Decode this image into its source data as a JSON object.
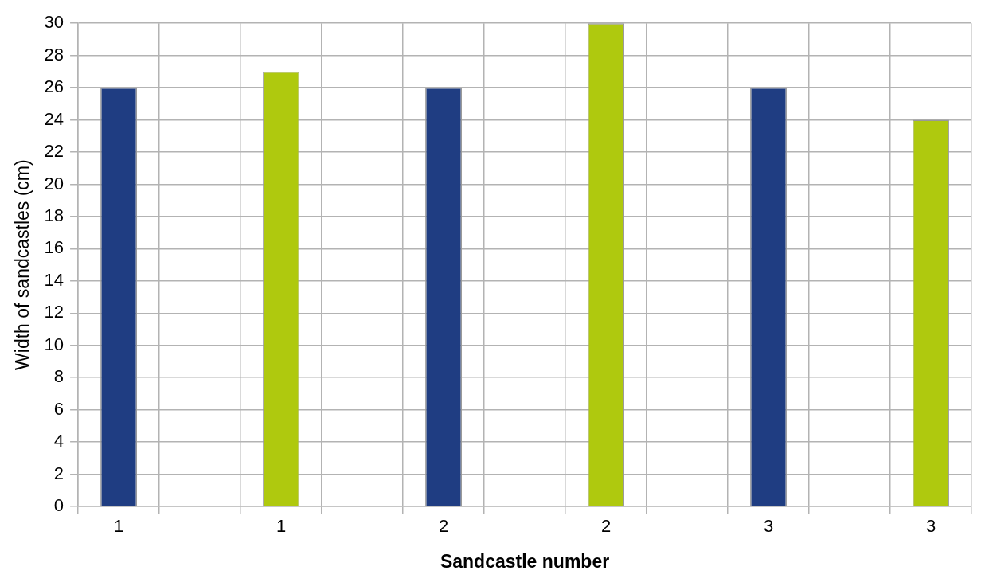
{
  "chart_data": {
    "type": "bar",
    "xlabel": "Sandcastle number",
    "ylabel": "Width of sandcastles (cm)",
    "categories": [
      "1",
      null,
      "1",
      null,
      "2",
      null,
      "2",
      null,
      "3",
      null,
      "3"
    ],
    "values": [
      26,
      null,
      27,
      null,
      26,
      null,
      30,
      null,
      26,
      null,
      24
    ],
    "colors": [
      "#1f3d82",
      null,
      "#afc90e",
      null,
      "#1f3d82",
      null,
      "#afc90e",
      null,
      "#1f3d82",
      null,
      "#afc90e"
    ],
    "ylim": [
      0,
      30
    ],
    "yticks": [
      0,
      2,
      4,
      6,
      8,
      10,
      12,
      14,
      16,
      18,
      20,
      22,
      24,
      26,
      28,
      30
    ],
    "grid": true,
    "legend": false
  }
}
